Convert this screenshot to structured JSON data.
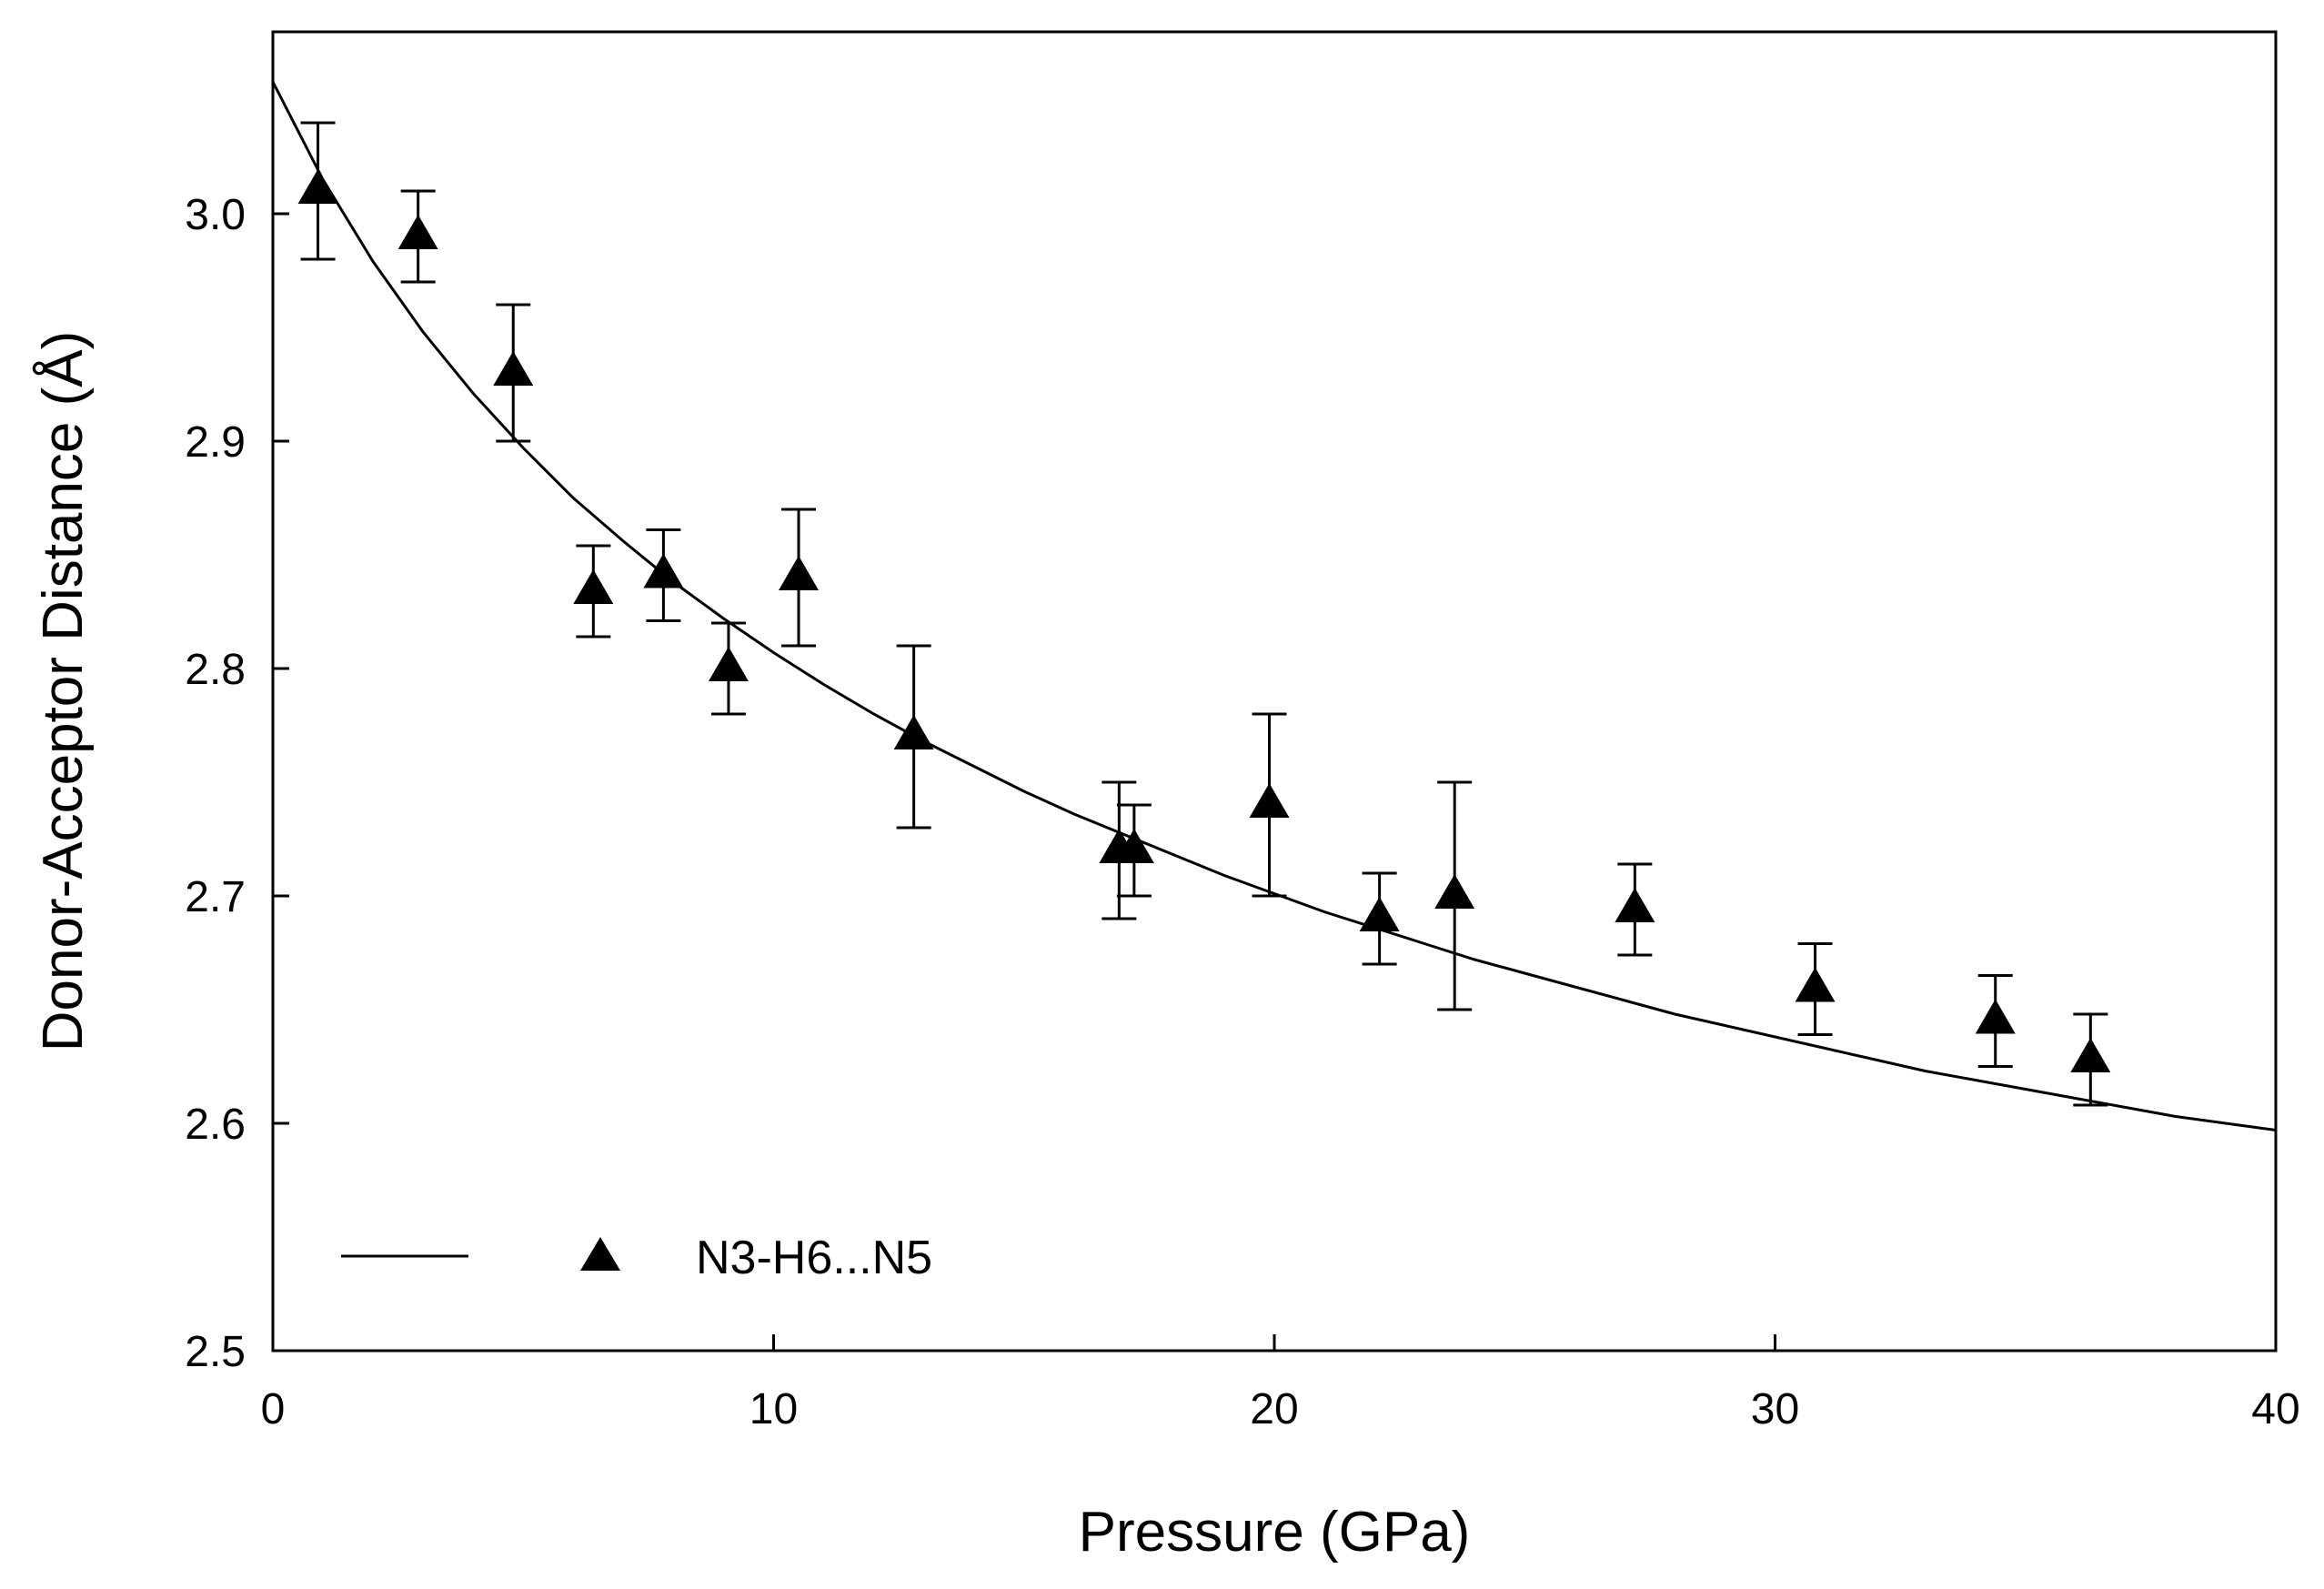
{
  "chart_data": {
    "type": "scatter",
    "title": "",
    "xlabel": "Pressure (GPa)",
    "ylabel": "Donor-Acceptor Distance (Å)",
    "xlim": [
      0,
      40
    ],
    "ylim": [
      2.5,
      3.08
    ],
    "x_ticks": [
      0,
      10,
      20,
      30,
      40
    ],
    "x_tick_labels": [
      "0",
      "10",
      "20",
      "30",
      "40"
    ],
    "y_ticks": [
      2.5,
      2.6,
      2.7,
      2.8,
      2.9,
      3.0
    ],
    "y_tick_labels": [
      "2.5",
      "2.6",
      "2.7",
      "2.8",
      "2.9",
      "3.0"
    ],
    "grid": false,
    "legend": {
      "position": "bottom-left",
      "label": "N3-H6...N5"
    },
    "series": [
      {
        "name": "N3-H6...N5",
        "marker": "triangle",
        "points": [
          {
            "x": 0.9,
            "y": 3.01,
            "err": 0.03
          },
          {
            "x": 2.9,
            "y": 2.99,
            "err": 0.02
          },
          {
            "x": 4.8,
            "y": 2.93,
            "err": 0.03
          },
          {
            "x": 6.4,
            "y": 2.834,
            "err": 0.02
          },
          {
            "x": 7.8,
            "y": 2.841,
            "err": 0.02
          },
          {
            "x": 9.1,
            "y": 2.8,
            "err": 0.02
          },
          {
            "x": 10.5,
            "y": 2.84,
            "err": 0.03
          },
          {
            "x": 12.8,
            "y": 2.77,
            "err": 0.04
          },
          {
            "x": 16.9,
            "y": 2.72,
            "err": 0.03
          },
          {
            "x": 17.2,
            "y": 2.72,
            "err": 0.02
          },
          {
            "x": 19.9,
            "y": 2.74,
            "err": 0.04
          },
          {
            "x": 22.1,
            "y": 2.69,
            "err": 0.02
          },
          {
            "x": 23.6,
            "y": 2.7,
            "err": 0.05
          },
          {
            "x": 27.2,
            "y": 2.694,
            "err": 0.02
          },
          {
            "x": 30.8,
            "y": 2.659,
            "err": 0.02
          },
          {
            "x": 34.4,
            "y": 2.645,
            "err": 0.02
          },
          {
            "x": 36.3,
            "y": 2.628,
            "err": 0.02
          }
        ]
      },
      {
        "name": "fit",
        "type": "line",
        "x": [
          0,
          1,
          2,
          3,
          4,
          5,
          6,
          7,
          8,
          9,
          10,
          11,
          12,
          13,
          14,
          15,
          16,
          17,
          18,
          19,
          20,
          21,
          22,
          23,
          24,
          25,
          26,
          27,
          28,
          29,
          30,
          31,
          32,
          33,
          34,
          35,
          36,
          37,
          38,
          39,
          40
        ],
        "y": [
          3.058,
          3.015,
          2.979,
          2.948,
          2.921,
          2.897,
          2.875,
          2.856,
          2.838,
          2.822,
          2.807,
          2.793,
          2.78,
          2.768,
          2.757,
          2.746,
          2.736,
          2.727,
          2.718,
          2.709,
          2.701,
          2.693,
          2.686,
          2.679,
          2.672,
          2.666,
          2.66,
          2.654,
          2.648,
          2.643,
          2.638,
          2.633,
          2.628,
          2.623,
          2.619,
          2.615,
          2.611,
          2.607,
          2.603,
          2.6,
          2.597
        ]
      }
    ]
  }
}
